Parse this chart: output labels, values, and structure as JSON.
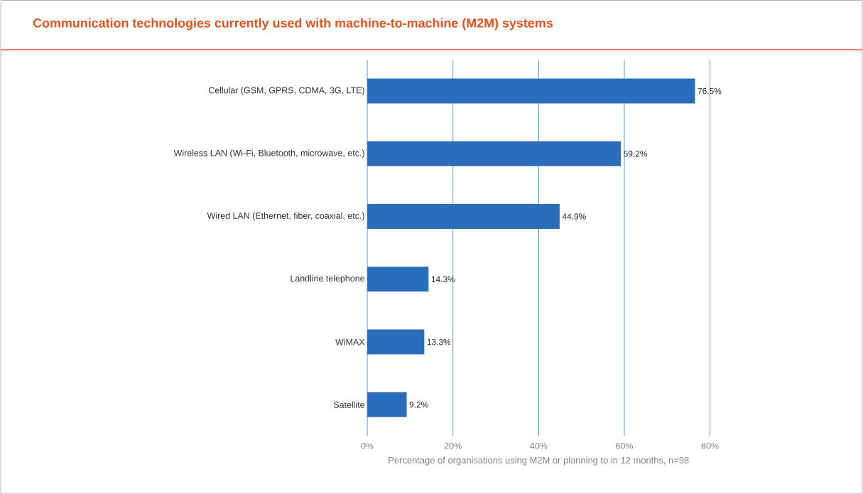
{
  "chart_data": {
    "type": "bar",
    "orientation": "horizontal",
    "title": "Communication technologies currently used with machine-to-machine (M2M) systems",
    "xlabel": "Percentage of organisations using M2M or planning to in 12 months, n=98",
    "categories": [
      "Cellular (GSM, GPRS, CDMA, 3G, LTE)",
      "Wireless LAN (Wi-Fi, Bluetooth, microwave, etc.)",
      "Wired LAN (Ethernet, fiber, coaxial, etc.)",
      "Landline telephone",
      "WiMAX",
      "Satellite"
    ],
    "values": [
      76.5,
      59.2,
      44.9,
      14.3,
      13.3,
      9.2
    ],
    "value_labels": [
      "76.5%",
      "59.2%",
      "44.9%",
      "14.3%",
      "13.3%",
      "9.2%"
    ],
    "color": "#2a6ebb",
    "xlim": [
      0,
      80
    ],
    "xticks": [
      {
        "value": 0,
        "label": "0%"
      },
      {
        "value": 20,
        "label": "20%"
      },
      {
        "value": 40,
        "label": "40%"
      },
      {
        "value": 60,
        "label": "60%"
      },
      {
        "value": 80,
        "label": "80%"
      }
    ],
    "grid": "x"
  }
}
